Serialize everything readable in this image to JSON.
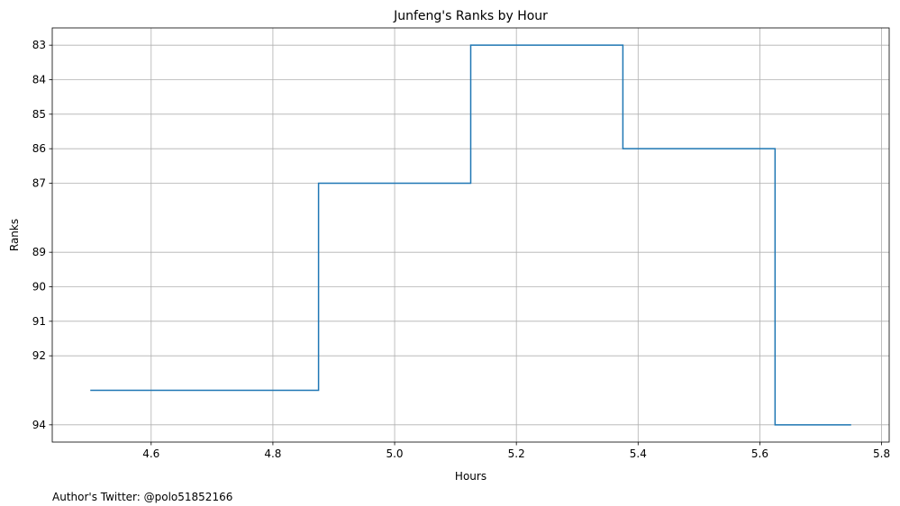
{
  "chart_data": {
    "type": "line",
    "step": "mid",
    "title": "Junfeng's Ranks by Hour",
    "xlabel": "Hours",
    "ylabel": "Ranks",
    "x": [
      4.5,
      4.75,
      5.0,
      5.25,
      5.5,
      5.75
    ],
    "series": [
      {
        "values": [
          93,
          93,
          87,
          83,
          86,
          94
        ]
      }
    ],
    "xlim": [
      4.4375,
      5.8125
    ],
    "ylim": [
      94.5,
      82.5
    ],
    "y_inverted": true,
    "xticks": [
      "4.6",
      "4.8",
      "5.0",
      "5.2",
      "5.4",
      "5.6",
      "5.8"
    ],
    "yticks": [
      "83",
      "84",
      "85",
      "86",
      "87",
      "89",
      "90",
      "91",
      "92",
      "94"
    ],
    "grid": true,
    "line_color": "#1f77b4",
    "grid_color": "#b0b0b0"
  },
  "footnote": "Author's Twitter: @polo51852166"
}
